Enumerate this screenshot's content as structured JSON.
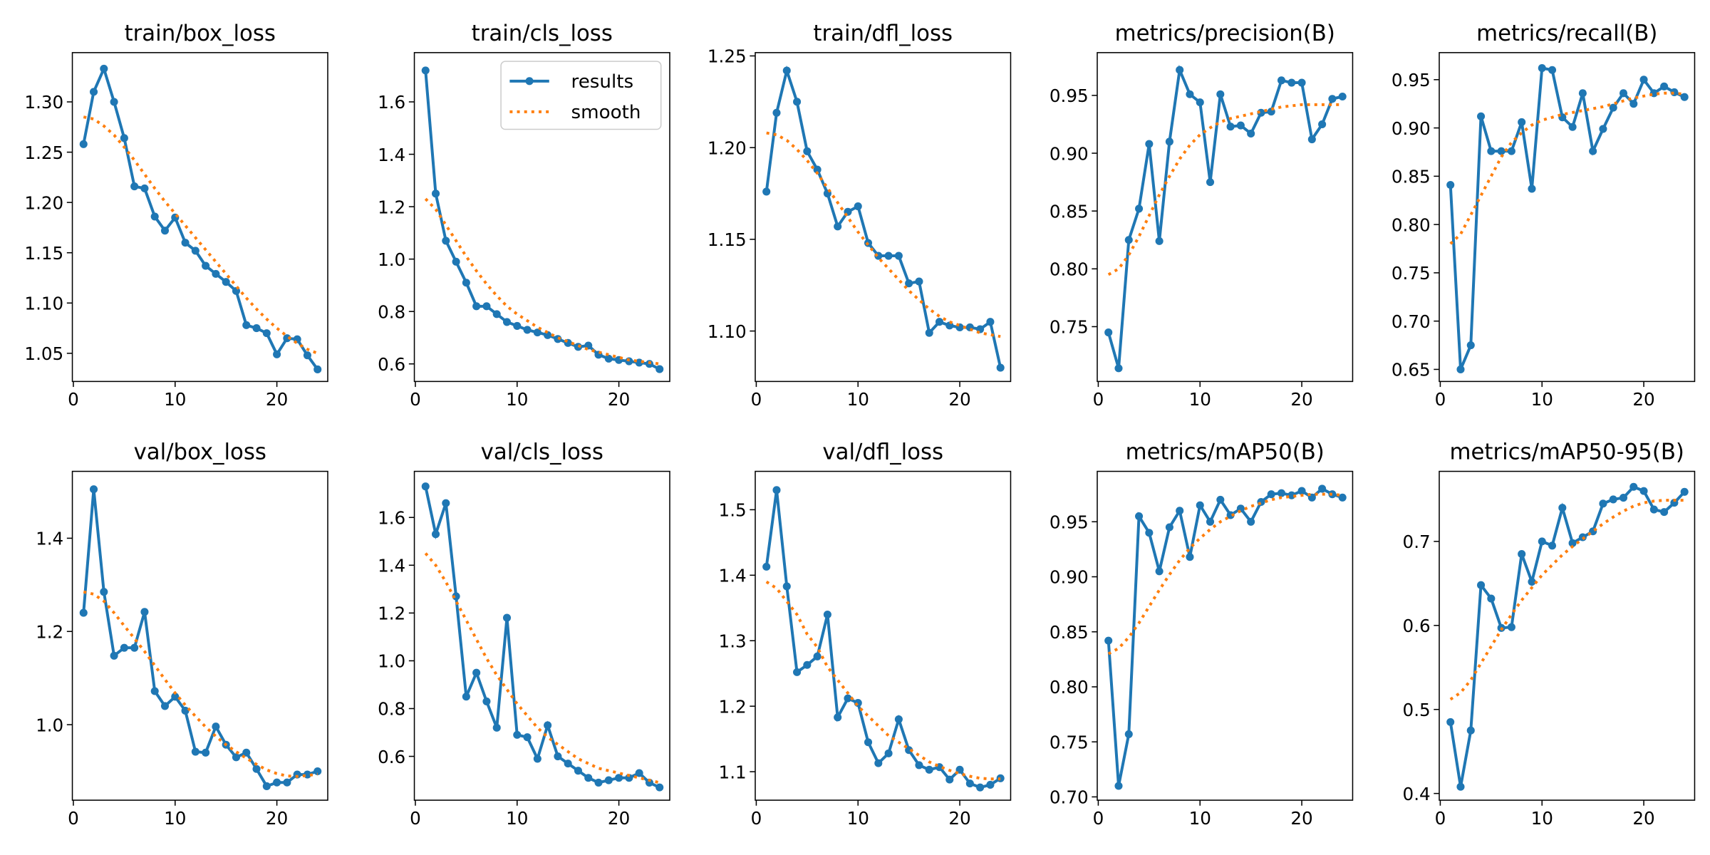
{
  "chart_data": [
    {
      "type": "line",
      "title": "train/box_loss",
      "x": [
        1,
        2,
        3,
        4,
        5,
        6,
        7,
        8,
        9,
        10,
        11,
        12,
        13,
        14,
        15,
        16,
        17,
        18,
        19,
        20,
        21,
        22,
        23,
        24
      ],
      "series": [
        {
          "color": "#1f77b4",
          "values": [
            1.258,
            1.31,
            1.333,
            1.3,
            1.264,
            1.216,
            1.214,
            1.186,
            1.172,
            1.185,
            1.16,
            1.152,
            1.137,
            1.129,
            1.121,
            1.112,
            1.078,
            1.075,
            1.07,
            1.049,
            1.065,
            1.064,
            1.048,
            1.034
          ]
        },
        {
          "color": "#ff7f0e",
          "values": [
            1.285,
            1.283,
            1.276,
            1.267,
            1.255,
            1.242,
            1.228,
            1.214,
            1.201,
            1.189,
            1.177,
            1.165,
            1.153,
            1.141,
            1.129,
            1.117,
            1.105,
            1.094,
            1.084,
            1.075,
            1.067,
            1.06,
            1.054,
            1.05
          ]
        }
      ],
      "xlim": [
        -0.1,
        25
      ],
      "xticks": [
        0,
        10,
        20
      ],
      "ylim": [
        1.022,
        1.349
      ],
      "yticks": [
        1.05,
        {
          "value": 1.1,
          "label": "1.10"
        },
        1.15,
        {
          "value": 1.2,
          "label": "1.20"
        },
        1.25,
        {
          "value": 1.3,
          "label": "1.30"
        }
      ]
    },
    {
      "type": "line",
      "title": "train/cls_loss",
      "x": [
        1,
        2,
        3,
        4,
        5,
        6,
        7,
        8,
        9,
        10,
        11,
        12,
        13,
        14,
        15,
        16,
        17,
        18,
        19,
        20,
        21,
        22,
        23,
        24
      ],
      "series": [
        {
          "name": "results",
          "color": "#1f77b4",
          "values": [
            1.72,
            1.25,
            1.07,
            0.99,
            0.91,
            0.82,
            0.82,
            0.79,
            0.76,
            0.745,
            0.73,
            0.72,
            0.71,
            0.695,
            0.68,
            0.665,
            0.67,
            0.635,
            0.62,
            0.615,
            0.61,
            0.605,
            0.6,
            0.58
          ]
        },
        {
          "name": "smooth",
          "color": "#ff7f0e",
          "values": [
            1.23,
            1.19,
            1.13,
            1.07,
            1.01,
            0.955,
            0.905,
            0.86,
            0.82,
            0.79,
            0.765,
            0.74,
            0.72,
            0.7,
            0.685,
            0.67,
            0.655,
            0.645,
            0.635,
            0.625,
            0.615,
            0.61,
            0.605,
            0.6
          ]
        }
      ],
      "xlim": [
        -0.1,
        25
      ],
      "xticks": [
        0,
        10,
        20
      ],
      "ylim": [
        0.533,
        1.788
      ],
      "yticks": [
        0.6,
        0.8,
        {
          "value": 1,
          "label": "1.0"
        },
        1.2,
        1.4,
        1.6
      ],
      "legend": "upper right"
    },
    {
      "type": "line",
      "title": "train/dfl_loss",
      "x": [
        1,
        2,
        3,
        4,
        5,
        6,
        7,
        8,
        9,
        10,
        11,
        12,
        13,
        14,
        15,
        16,
        17,
        18,
        19,
        20,
        21,
        22,
        23,
        24
      ],
      "series": [
        {
          "color": "#1f77b4",
          "values": [
            1.176,
            1.219,
            1.242,
            1.225,
            1.198,
            1.188,
            1.175,
            1.157,
            1.165,
            1.168,
            1.148,
            1.141,
            1.141,
            1.141,
            1.126,
            1.127,
            1.099,
            1.105,
            1.103,
            1.102,
            1.102,
            1.101,
            1.105,
            1.08
          ]
        },
        {
          "color": "#ff7f0e",
          "values": [
            1.208,
            1.207,
            1.204,
            1.199,
            1.193,
            1.186,
            1.178,
            1.17,
            1.162,
            1.154,
            1.147,
            1.14,
            1.134,
            1.128,
            1.122,
            1.117,
            1.112,
            1.108,
            1.105,
            1.103,
            1.101,
            1.099,
            1.098,
            1.097
          ]
        }
      ],
      "xlim": [
        -0.1,
        25
      ],
      "xticks": [
        0,
        10,
        20
      ],
      "ylim": [
        1.0725,
        1.2518
      ],
      "yticks": [
        {
          "value": 1.1,
          "label": "1.10"
        },
        1.15,
        {
          "value": 1.2,
          "label": "1.20"
        },
        1.25
      ]
    },
    {
      "type": "line",
      "title": "metrics/precision(B)",
      "x": [
        1,
        2,
        3,
        4,
        5,
        6,
        7,
        8,
        9,
        10,
        11,
        12,
        13,
        14,
        15,
        16,
        17,
        18,
        19,
        20,
        21,
        22,
        23,
        24
      ],
      "series": [
        {
          "color": "#1f77b4",
          "values": [
            0.745,
            0.714,
            0.825,
            0.852,
            0.908,
            0.824,
            0.91,
            0.972,
            0.951,
            0.944,
            0.875,
            0.951,
            0.923,
            0.924,
            0.917,
            0.935,
            0.936,
            0.963,
            0.961,
            0.961,
            0.912,
            0.925,
            0.947,
            0.949
          ]
        },
        {
          "color": "#ff7f0e",
          "values": [
            0.795,
            0.8,
            0.812,
            0.828,
            0.846,
            0.864,
            0.88,
            0.895,
            0.907,
            0.916,
            0.922,
            0.927,
            0.93,
            0.932,
            0.934,
            0.936,
            0.938,
            0.94,
            0.941,
            0.942,
            0.942,
            0.942,
            0.942,
            0.942
          ]
        }
      ],
      "xlim": [
        -0.1,
        25
      ],
      "xticks": [
        0,
        10,
        20
      ],
      "ylim": [
        0.7026,
        0.987
      ],
      "yticks": [
        0.75,
        {
          "value": 0.8,
          "label": "0.80"
        },
        0.85,
        {
          "value": 0.9,
          "label": "0.90"
        },
        0.95
      ]
    },
    {
      "type": "line",
      "title": "metrics/recall(B)",
      "x": [
        1,
        2,
        3,
        4,
        5,
        6,
        7,
        8,
        9,
        10,
        11,
        12,
        13,
        14,
        15,
        16,
        17,
        18,
        19,
        20,
        21,
        22,
        23,
        24
      ],
      "series": [
        {
          "color": "#1f77b4",
          "values": [
            0.841,
            0.65,
            0.675,
            0.912,
            0.876,
            0.876,
            0.876,
            0.906,
            0.837,
            0.962,
            0.96,
            0.911,
            0.901,
            0.936,
            0.876,
            0.899,
            0.921,
            0.936,
            0.925,
            0.95,
            0.936,
            0.943,
            0.937,
            0.932
          ]
        },
        {
          "color": "#ff7f0e",
          "values": [
            0.78,
            0.79,
            0.81,
            0.83,
            0.85,
            0.87,
            0.885,
            0.895,
            0.903,
            0.908,
            0.911,
            0.914,
            0.916,
            0.918,
            0.92,
            0.922,
            0.925,
            0.928,
            0.931,
            0.933,
            0.935,
            0.936,
            0.936,
            0.935
          ]
        }
      ],
      "xlim": [
        -0.1,
        25
      ],
      "xticks": [
        0,
        10,
        20
      ],
      "ylim": [
        0.6375,
        0.978
      ],
      "yticks": [
        0.65,
        {
          "value": 0.7,
          "label": "0.70"
        },
        0.75,
        {
          "value": 0.8,
          "label": "0.80"
        },
        0.85,
        {
          "value": 0.9,
          "label": "0.90"
        },
        0.95
      ]
    },
    {
      "type": "line",
      "title": "val/box_loss",
      "x": [
        1,
        2,
        3,
        4,
        5,
        6,
        7,
        8,
        9,
        10,
        11,
        12,
        13,
        14,
        15,
        16,
        17,
        18,
        19,
        20,
        21,
        22,
        23,
        24
      ],
      "series": [
        {
          "color": "#1f77b4",
          "values": [
            1.24,
            1.505,
            1.285,
            1.148,
            1.165,
            1.165,
            1.242,
            1.072,
            1.04,
            1.06,
            1.03,
            0.942,
            0.94,
            0.996,
            0.957,
            0.93,
            0.94,
            0.905,
            0.868,
            0.876,
            0.876,
            0.893,
            0.893,
            0.9
          ]
        },
        {
          "color": "#ff7f0e",
          "values": [
            1.285,
            1.28,
            1.265,
            1.24,
            1.212,
            1.185,
            1.157,
            1.127,
            1.097,
            1.068,
            1.042,
            1.018,
            0.995,
            0.975,
            0.957,
            0.942,
            0.928,
            0.915,
            0.903,
            0.895,
            0.89,
            0.889,
            0.891,
            0.894
          ]
        }
      ],
      "xlim": [
        -0.1,
        25
      ],
      "xticks": [
        0,
        10,
        20
      ],
      "ylim": [
        0.838,
        1.5435
      ],
      "yticks": [
        {
          "value": 1,
          "label": "1.0"
        },
        1.2,
        1.4
      ]
    },
    {
      "type": "line",
      "title": "val/cls_loss",
      "x": [
        1,
        2,
        3,
        4,
        5,
        6,
        7,
        8,
        9,
        10,
        11,
        12,
        13,
        14,
        15,
        16,
        17,
        18,
        19,
        20,
        21,
        22,
        23,
        24
      ],
      "series": [
        {
          "color": "#1f77b4",
          "values": [
            1.73,
            1.53,
            1.66,
            1.27,
            0.85,
            0.95,
            0.83,
            0.72,
            1.18,
            0.69,
            0.68,
            0.59,
            0.73,
            0.6,
            0.57,
            0.54,
            0.51,
            0.49,
            0.5,
            0.51,
            0.51,
            0.53,
            0.49,
            0.47
          ]
        },
        {
          "color": "#ff7f0e",
          "values": [
            1.45,
            1.4,
            1.33,
            1.25,
            1.17,
            1.09,
            1.01,
            0.94,
            0.88,
            0.82,
            0.77,
            0.72,
            0.68,
            0.65,
            0.62,
            0.59,
            0.57,
            0.55,
            0.54,
            0.53,
            0.52,
            0.51,
            0.5,
            0.49
          ]
        }
      ],
      "xlim": [
        -0.1,
        25
      ],
      "xticks": [
        0,
        10,
        20
      ],
      "ylim": [
        0.4165,
        1.793
      ],
      "yticks": [
        0.6,
        0.8,
        {
          "value": 1,
          "label": "1.0"
        },
        1.2,
        1.4,
        1.6
      ]
    },
    {
      "type": "line",
      "title": "val/dfl_loss",
      "x": [
        1,
        2,
        3,
        4,
        5,
        6,
        7,
        8,
        9,
        10,
        11,
        12,
        13,
        14,
        15,
        16,
        17,
        18,
        19,
        20,
        21,
        22,
        23,
        24
      ],
      "series": [
        {
          "color": "#1f77b4",
          "values": [
            1.413,
            1.53,
            1.383,
            1.252,
            1.263,
            1.276,
            1.34,
            1.183,
            1.212,
            1.205,
            1.145,
            1.113,
            1.128,
            1.18,
            1.133,
            1.11,
            1.103,
            1.107,
            1.088,
            1.103,
            1.082,
            1.076,
            1.08,
            1.09
          ]
        },
        {
          "color": "#ff7f0e",
          "values": [
            1.39,
            1.38,
            1.36,
            1.34,
            1.31,
            1.29,
            1.26,
            1.24,
            1.22,
            1.2,
            1.185,
            1.17,
            1.155,
            1.145,
            1.135,
            1.125,
            1.115,
            1.108,
            1.102,
            1.097,
            1.093,
            1.09,
            1.089,
            1.089
          ]
        }
      ],
      "xlim": [
        -0.1,
        25
      ],
      "xticks": [
        0,
        10,
        20
      ],
      "ylim": [
        1.0565,
        1.5586
      ],
      "yticks": [
        1.1,
        1.2,
        1.3,
        1.4,
        1.5
      ]
    },
    {
      "type": "line",
      "title": "metrics/mAP50(B)",
      "x": [
        1,
        2,
        3,
        4,
        5,
        6,
        7,
        8,
        9,
        10,
        11,
        12,
        13,
        14,
        15,
        16,
        17,
        18,
        19,
        20,
        21,
        22,
        23,
        24
      ],
      "series": [
        {
          "color": "#1f77b4",
          "values": [
            0.842,
            0.71,
            0.757,
            0.955,
            0.94,
            0.905,
            0.945,
            0.96,
            0.918,
            0.965,
            0.95,
            0.97,
            0.956,
            0.962,
            0.95,
            0.968,
            0.975,
            0.976,
            0.974,
            0.978,
            0.972,
            0.98,
            0.975,
            0.972
          ]
        },
        {
          "color": "#ff7f0e",
          "values": [
            0.83,
            0.835,
            0.845,
            0.858,
            0.873,
            0.888,
            0.902,
            0.915,
            0.926,
            0.935,
            0.943,
            0.95,
            0.955,
            0.96,
            0.964,
            0.967,
            0.97,
            0.972,
            0.973,
            0.974,
            0.975,
            0.975,
            0.975,
            0.974
          ]
        }
      ],
      "xlim": [
        -0.1,
        25
      ],
      "xticks": [
        0,
        10,
        20
      ],
      "ylim": [
        0.697,
        0.9958
      ],
      "yticks": [
        {
          "value": 0.7,
          "label": "0.70"
        },
        0.75,
        {
          "value": 0.8,
          "label": "0.80"
        },
        0.85,
        {
          "value": 0.9,
          "label": "0.90"
        },
        0.95
      ]
    },
    {
      "type": "line",
      "title": "metrics/mAP50-95(B)",
      "x": [
        1,
        2,
        3,
        4,
        5,
        6,
        7,
        8,
        9,
        10,
        11,
        12,
        13,
        14,
        15,
        16,
        17,
        18,
        19,
        20,
        21,
        22,
        23,
        24
      ],
      "series": [
        {
          "color": "#1f77b4",
          "values": [
            0.485,
            0.408,
            0.475,
            0.648,
            0.632,
            0.597,
            0.598,
            0.685,
            0.652,
            0.7,
            0.695,
            0.74,
            0.698,
            0.705,
            0.712,
            0.745,
            0.75,
            0.752,
            0.765,
            0.76,
            0.738,
            0.735,
            0.746,
            0.759
          ]
        },
        {
          "color": "#ff7f0e",
          "values": [
            0.512,
            0.52,
            0.535,
            0.555,
            0.575,
            0.595,
            0.613,
            0.63,
            0.645,
            0.66,
            0.672,
            0.684,
            0.694,
            0.703,
            0.712,
            0.721,
            0.729,
            0.736,
            0.742,
            0.746,
            0.748,
            0.749,
            0.749,
            0.749
          ]
        }
      ],
      "xlim": [
        -0.1,
        25
      ],
      "xticks": [
        0,
        10,
        20
      ],
      "ylim": [
        0.392,
        0.7834
      ],
      "yticks": [
        0.4,
        0.5,
        0.6,
        0.7
      ]
    }
  ]
}
